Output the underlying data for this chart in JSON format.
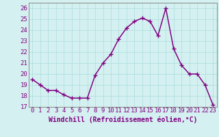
{
  "x": [
    0,
    1,
    2,
    3,
    4,
    5,
    6,
    7,
    8,
    9,
    10,
    11,
    12,
    13,
    14,
    15,
    16,
    17,
    18,
    19,
    20,
    21,
    22,
    23
  ],
  "y": [
    19.5,
    19.0,
    18.5,
    18.5,
    18.1,
    17.8,
    17.8,
    17.8,
    19.9,
    21.0,
    21.8,
    23.2,
    24.2,
    24.8,
    25.1,
    24.8,
    23.5,
    26.0,
    22.3,
    20.8,
    20.0,
    20.0,
    19.0,
    17.2
  ],
  "line_color": "#800080",
  "marker": "+",
  "marker_size": 4,
  "bg_color": "#d4f0f0",
  "grid_color": "#aadddd",
  "xlabel": "Windchill (Refroidissement éolien,°C)",
  "xlim": [
    -0.5,
    23.5
  ],
  "ylim": [
    17,
    26.5
  ],
  "yticks": [
    17,
    18,
    19,
    20,
    21,
    22,
    23,
    24,
    25,
    26
  ],
  "xticks": [
    0,
    1,
    2,
    3,
    4,
    5,
    6,
    7,
    8,
    9,
    10,
    11,
    12,
    13,
    14,
    15,
    16,
    17,
    18,
    19,
    20,
    21,
    22,
    23
  ],
  "xlabel_fontsize": 7,
  "tick_fontsize": 6.5,
  "line_width": 1.1
}
